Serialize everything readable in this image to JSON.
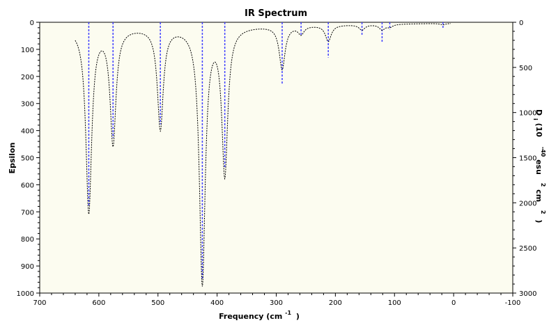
{
  "chart_data": {
    "type": "line",
    "title": "IR Spectrum",
    "xlabel": {
      "text": "Frequency (cm",
      "sup": "-1",
      "close": ")"
    },
    "ylabel": "Epsilon",
    "y2label": {
      "text": "D",
      "sub": "i",
      "a": "(10",
      "sup1": "-40",
      "b": " esu",
      "sup2": "2",
      "c": " cm",
      "sup3": "2",
      "d": ")"
    },
    "xlim": [
      700,
      -100
    ],
    "ylim": [
      0,
      1000
    ],
    "y2lim": [
      0,
      3000
    ],
    "y_reversed": true,
    "x_ticks": [
      "700",
      "600",
      "500",
      "400",
      "300",
      "200",
      "100",
      "0",
      "-100"
    ],
    "y_ticks": [
      "0",
      "100",
      "200",
      "300",
      "400",
      "500",
      "600",
      "700",
      "800",
      "900",
      "1000"
    ],
    "y2_ticks": [
      "0",
      "500",
      "1000",
      "1500",
      "2000",
      "2500",
      "3000"
    ],
    "colors": {
      "background": "#fcfcf0",
      "spectrum": "#000000",
      "sticks": "#4040ff"
    },
    "stick_height_scale": "dipole strength (right axis)",
    "peaks": [
      {
        "x": 617,
        "eps": 680,
        "stick": 2040
      },
      {
        "x": 576,
        "eps": 425,
        "stick": 1280
      },
      {
        "x": 496,
        "eps": 375,
        "stick": 1130
      },
      {
        "x": 425,
        "eps": 945,
        "stick": 2850
      },
      {
        "x": 387,
        "eps": 540,
        "stick": 1620
      },
      {
        "x": 290,
        "eps": 160,
        "stick": 680
      },
      {
        "x": 258,
        "eps": 30,
        "stick": 150
      },
      {
        "x": 212,
        "eps": 60,
        "stick": 390
      },
      {
        "x": 155,
        "eps": 20,
        "stick": 150
      },
      {
        "x": 121,
        "eps": 20,
        "stick": 230
      },
      {
        "x": 108,
        "eps": 10,
        "stick": 80
      },
      {
        "x": 18,
        "eps": 5,
        "stick": 70
      }
    ],
    "spectrum_x_range": [
      640,
      5
    ],
    "grid": false,
    "legend": "none"
  }
}
